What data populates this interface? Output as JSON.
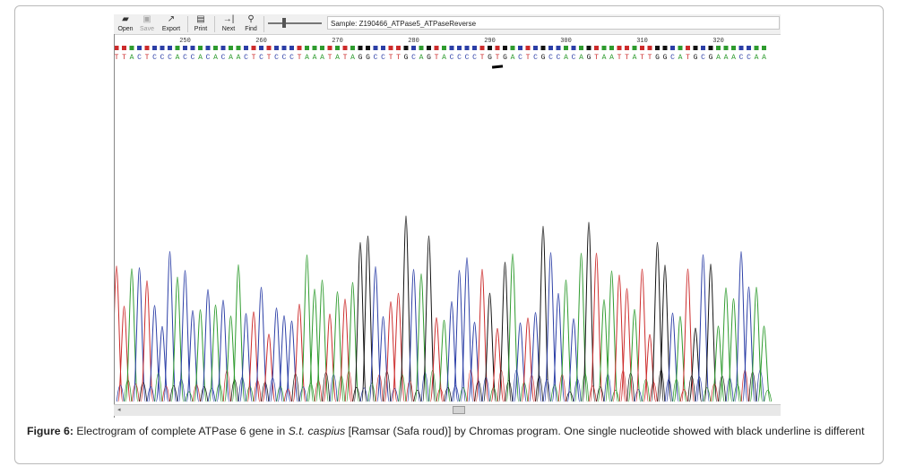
{
  "toolbar": {
    "buttons": [
      {
        "id": "open",
        "label": "Open",
        "icon": "folder-open-icon",
        "glyph": "▰",
        "enabled": true
      },
      {
        "id": "save",
        "label": "Save",
        "icon": "floppy-disk-icon",
        "glyph": "▣",
        "enabled": false
      },
      {
        "id": "export",
        "label": "Export",
        "icon": "export-icon",
        "glyph": "↗",
        "enabled": true
      },
      {
        "id": "print",
        "label": "Print",
        "icon": "printer-icon",
        "glyph": "▤",
        "enabled": true
      },
      {
        "id": "next",
        "label": "Next",
        "icon": "next-icon",
        "glyph": "→|",
        "enabled": true
      },
      {
        "id": "find",
        "label": "Find",
        "icon": "binoculars-icon",
        "glyph": "⚲",
        "enabled": true
      }
    ],
    "sample_label": "Sample: Z190466_ATPase5_ATPaseReverse"
  },
  "sequence": {
    "bases": "TTACTCCCACCACACAACTCTCCCTAAATATAGGCCTTGCAGTACCCCTGTGACTCGCCACAGTAATTATTGGCATGCGAAACCAA",
    "positions": [
      250,
      260,
      270,
      280,
      290,
      300,
      310,
      320
    ],
    "first_base_number": 241,
    "highlighted_base_index": 50
  },
  "colors": {
    "A": "#2e9b2e",
    "C": "#2b3ea6",
    "G": "#111111",
    "T": "#cc2b2b",
    "window_bg": "#ffffff",
    "toolbar_bg": "#f0f0f0"
  },
  "caption": {
    "label": "Figure 6:",
    "text_before": " Electrogram of complete ATPase 6 gene in ",
    "species": "S.t. caspius",
    "text_after": " [Ramsar (Safa roud)] by Chromas program. One single nucleotide showed with black underline is different"
  }
}
